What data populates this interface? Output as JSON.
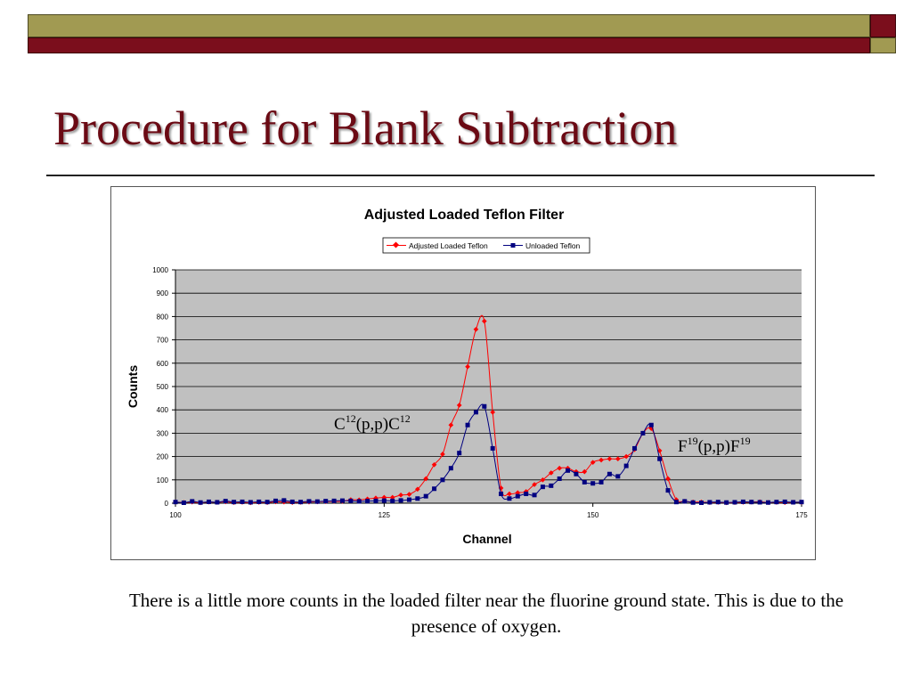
{
  "slide": {
    "title": "Procedure for Blank Subtraction",
    "caption": "There is a little more counts in the loaded filter near the fluorine ground state. This is due to the presence of oxygen.",
    "annotations": [
      {
        "base": "C",
        "sup1": "12",
        "mid": "(p,p)C",
        "sup2": "12"
      },
      {
        "base": "F",
        "sup1": "19",
        "mid": "(p,p)F",
        "sup2": "19"
      }
    ]
  },
  "colors": {
    "title": "#6b0a14",
    "olive_bar": "#a19a52",
    "maroon_bar": "#7b0e1c",
    "plot_bg": "#c0c0c0",
    "series_loaded": "#ff0000",
    "series_unloaded": "#000080"
  },
  "chart_data": {
    "type": "line",
    "title": "Adjusted Loaded Teflon Filter",
    "xlabel": "Channel",
    "ylabel": "Counts",
    "xlim": [
      100,
      175
    ],
    "ylim": [
      0,
      1000
    ],
    "xticks": [
      100,
      125,
      150,
      175
    ],
    "yticks": [
      0,
      100,
      200,
      300,
      400,
      500,
      600,
      700,
      800,
      900,
      1000
    ],
    "grid": true,
    "legend_position": "top",
    "x": [
      100,
      101,
      102,
      103,
      104,
      105,
      106,
      107,
      108,
      109,
      110,
      111,
      112,
      113,
      114,
      115,
      116,
      117,
      118,
      119,
      120,
      121,
      122,
      123,
      124,
      125,
      126,
      127,
      128,
      129,
      130,
      131,
      132,
      133,
      134,
      135,
      136,
      137,
      138,
      139,
      140,
      141,
      142,
      143,
      144,
      145,
      146,
      147,
      148,
      149,
      150,
      151,
      152,
      153,
      154,
      155,
      156,
      157,
      158,
      159,
      160,
      161,
      162,
      163,
      164,
      165,
      166,
      167,
      168,
      169,
      170,
      171,
      172,
      173,
      174,
      175
    ],
    "series": [
      {
        "name": "Adjusted Loaded Teflon",
        "marker": "diamond",
        "values": [
          5,
          3,
          5,
          2,
          5,
          4,
          6,
          3,
          4,
          2,
          4,
          3,
          6,
          5,
          3,
          4,
          5,
          6,
          7,
          8,
          8,
          15,
          14,
          18,
          22,
          25,
          25,
          35,
          38,
          60,
          105,
          165,
          210,
          335,
          420,
          585,
          745,
          780,
          390,
          65,
          40,
          45,
          50,
          80,
          100,
          130,
          150,
          150,
          135,
          135,
          175,
          185,
          190,
          190,
          200,
          230,
          300,
          320,
          225,
          105,
          15,
          8,
          5,
          5,
          3,
          4,
          2,
          3,
          4,
          5,
          6,
          3,
          4,
          3,
          4,
          4
        ]
      },
      {
        "name": "Unloaded Teflon",
        "marker": "square",
        "values": [
          5,
          2,
          8,
          3,
          6,
          4,
          9,
          5,
          6,
          4,
          6,
          5,
          10,
          12,
          6,
          5,
          8,
          7,
          9,
          10,
          11,
          10,
          8,
          9,
          10,
          11,
          10,
          12,
          15,
          20,
          30,
          62,
          100,
          150,
          215,
          335,
          390,
          415,
          235,
          40,
          20,
          30,
          40,
          35,
          70,
          75,
          105,
          140,
          125,
          90,
          85,
          90,
          125,
          115,
          160,
          235,
          300,
          335,
          190,
          55,
          5,
          8,
          3,
          2,
          4,
          5,
          3,
          4,
          6,
          5,
          4,
          3,
          5,
          6,
          4,
          5
        ]
      }
    ]
  }
}
